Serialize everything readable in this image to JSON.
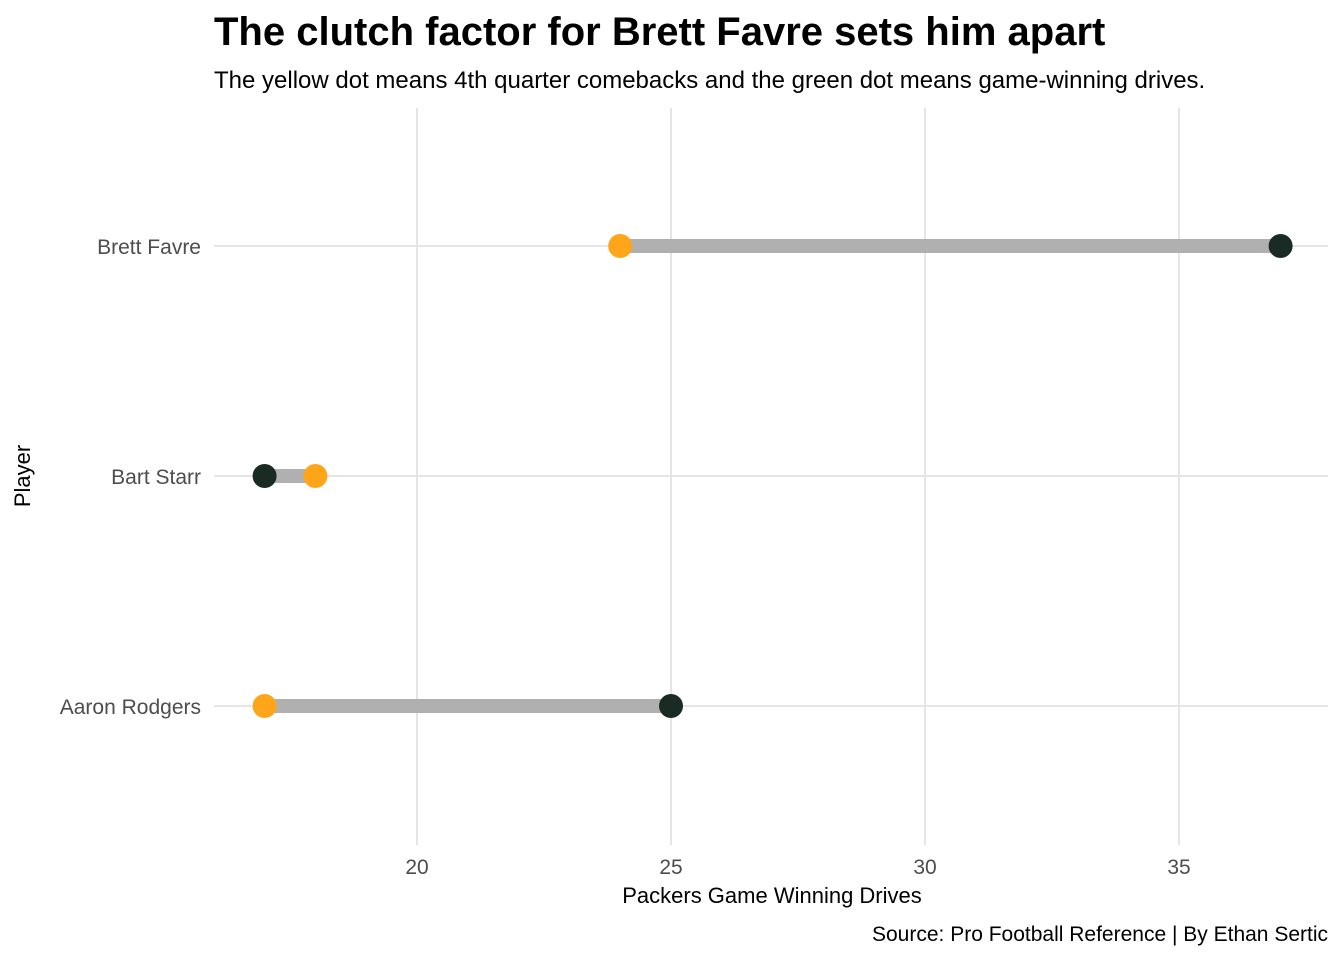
{
  "chart_data": {
    "type": "dumbbell",
    "title": "The clutch factor for Brett Favre sets him apart",
    "subtitle": "The yellow dot means 4th quarter comebacks and the green dot means game-winning drives.",
    "xlabel": "Packers Game Winning Drives",
    "ylabel": "Player",
    "caption": "Source: Pro Football Reference | By Ethan Sertic",
    "xlim": [
      15.0,
      37.5
    ],
    "x_ticks": [
      20,
      25,
      30,
      35
    ],
    "grid": true,
    "categories": [
      "Brett Favre",
      "Bart Starr",
      "Aaron Rodgers"
    ],
    "series": [
      {
        "name": "4th quarter comebacks",
        "color": "#FFA51A",
        "values": [
          24,
          18,
          17
        ]
      },
      {
        "name": "game-winning drives",
        "color": "#1A2B24",
        "values": [
          37,
          17,
          25
        ]
      }
    ],
    "segment_color": "#B0B0B0",
    "grid_color": "#E5E5E5"
  }
}
